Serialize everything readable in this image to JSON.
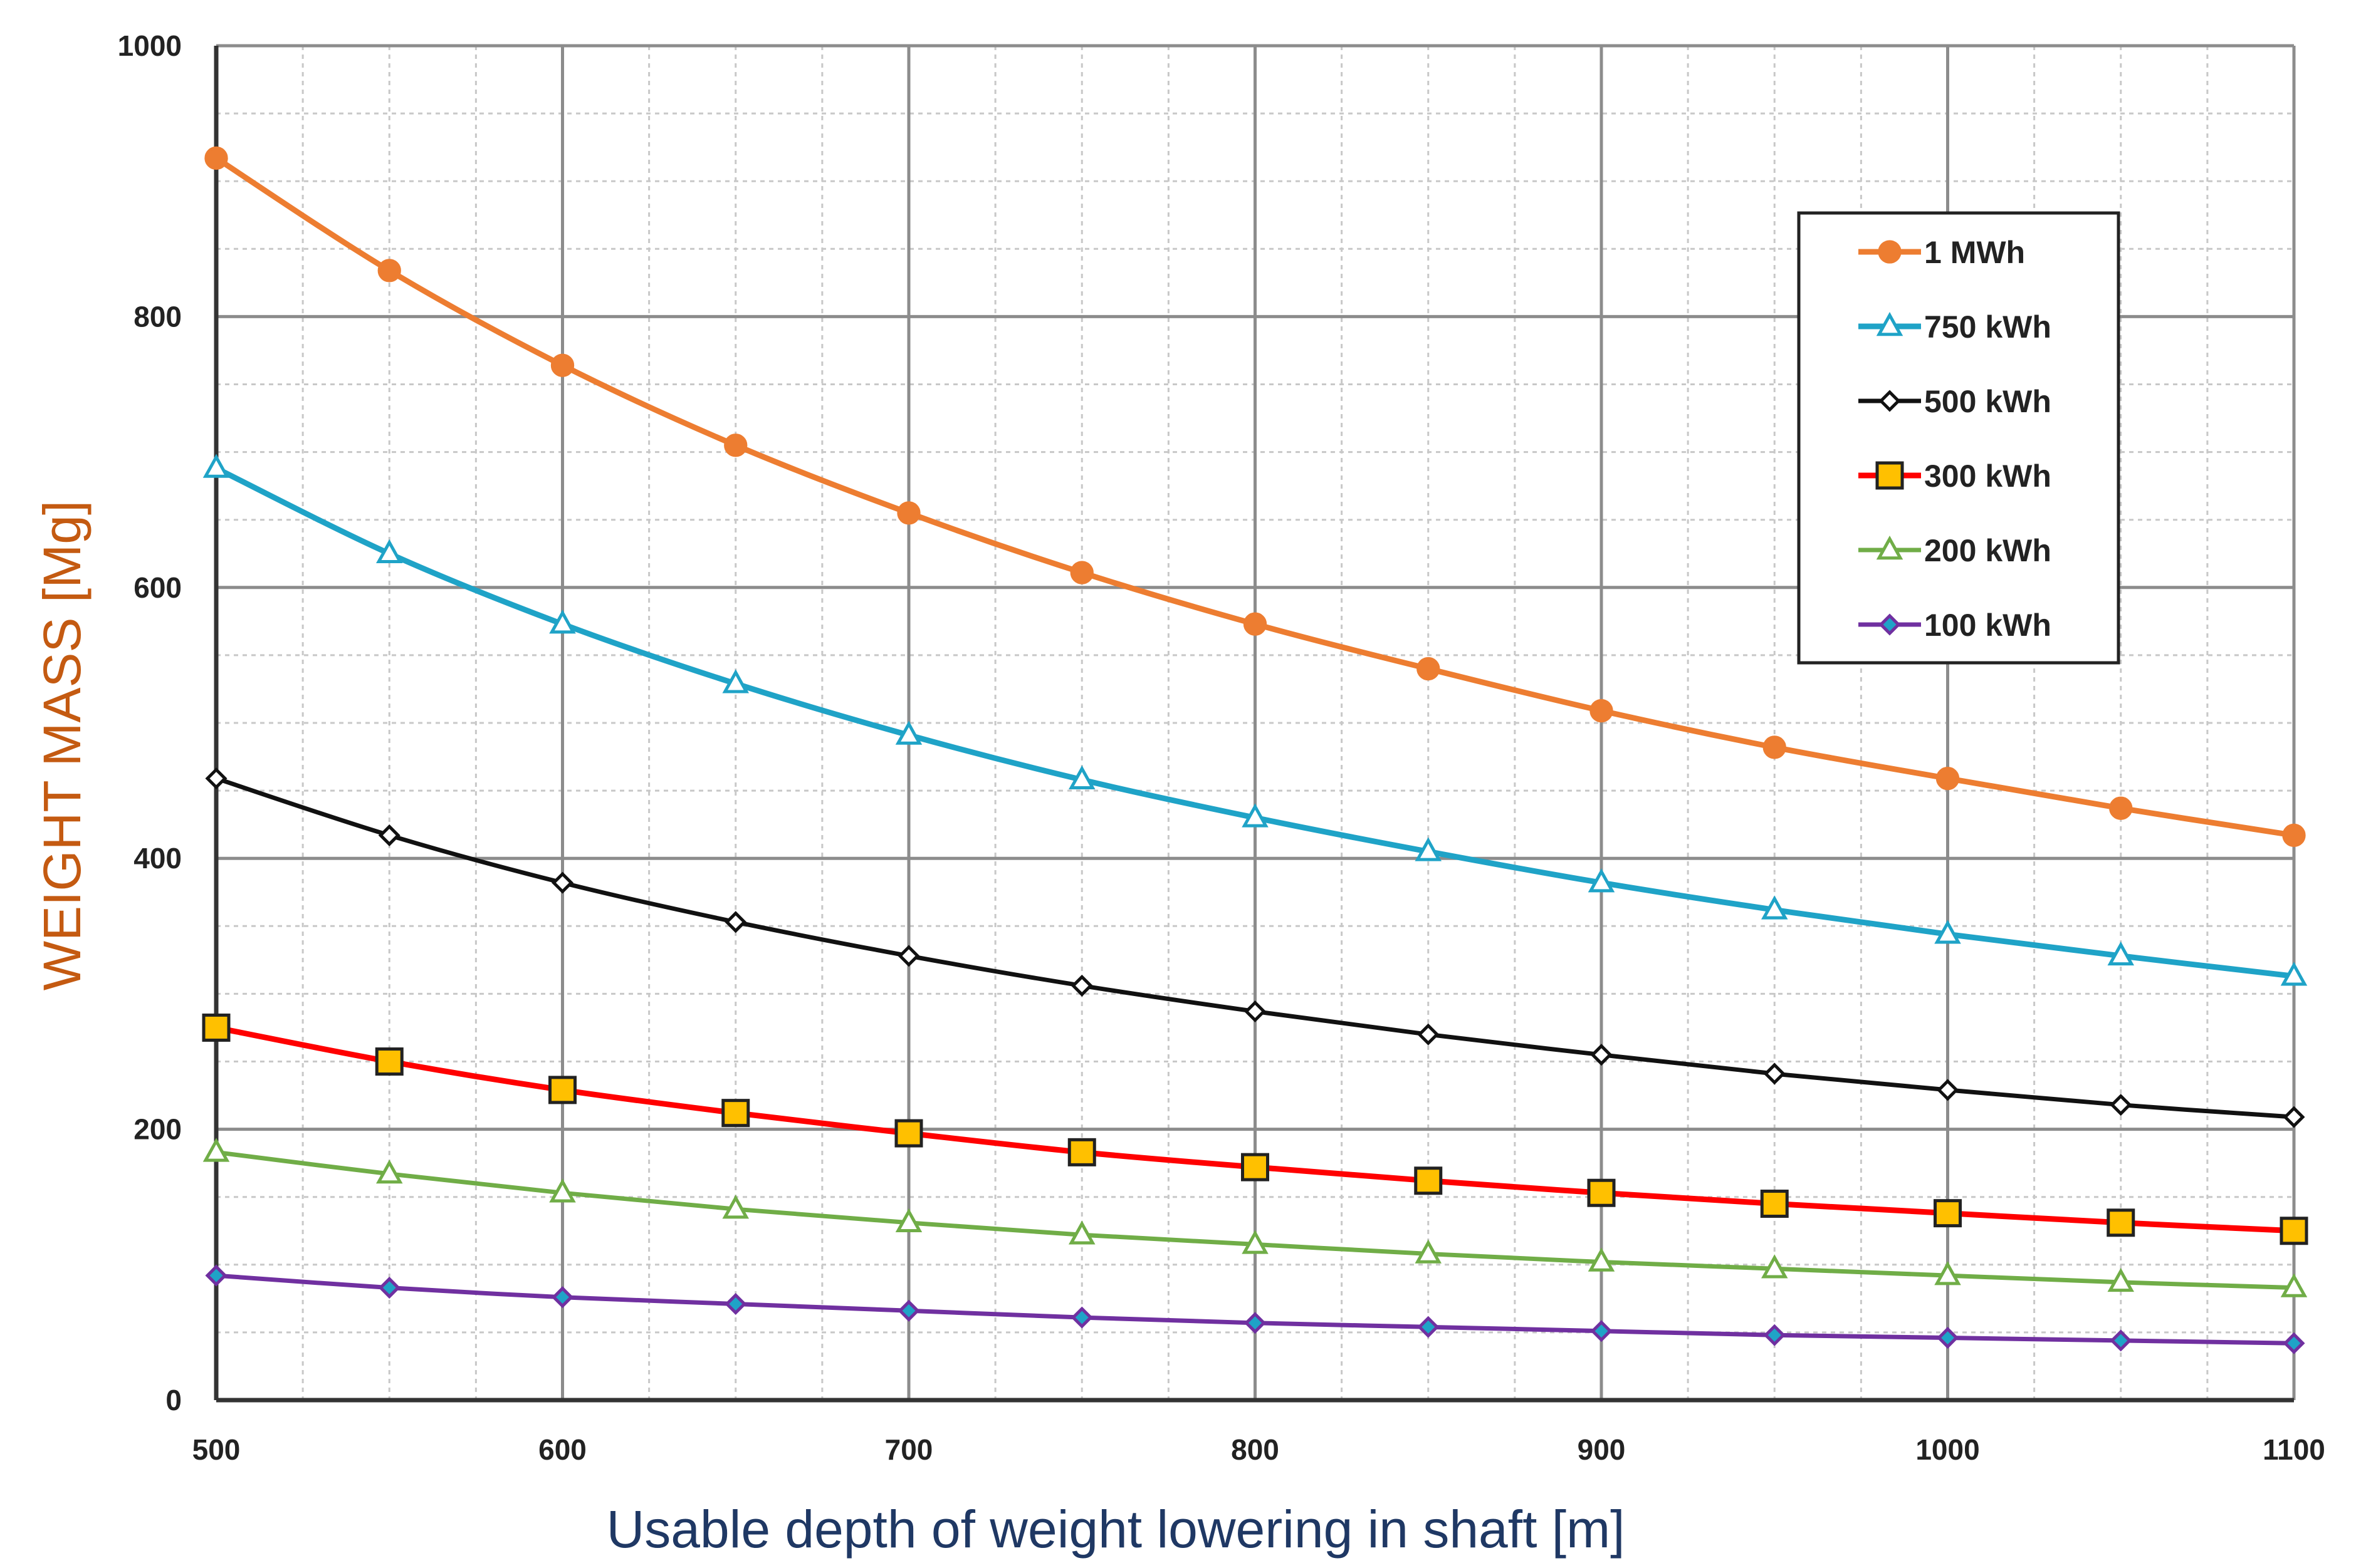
{
  "chart_data": {
    "type": "line",
    "title": "",
    "xlabel": "Usable depth of weight lowering in shaft [m]",
    "ylabel": "WEIGHT MASS [Mg]",
    "xlim": [
      500,
      1100
    ],
    "ylim": [
      0,
      1000
    ],
    "x_ticks": [
      500,
      600,
      700,
      800,
      900,
      1000,
      1100
    ],
    "y_ticks": [
      0,
      200,
      400,
      600,
      800,
      1000
    ],
    "x_minor_step": 25,
    "y_minor_step": 50,
    "grid": true,
    "legend_position": "top-right",
    "x": [
      500,
      550,
      600,
      650,
      700,
      750,
      800,
      850,
      900,
      950,
      1000,
      1050,
      1100
    ],
    "series": [
      {
        "name": "1 MWh",
        "color": "#ED7D31",
        "marker": "circle",
        "marker_fill": "#ED7D31",
        "values": [
          917,
          834,
          764,
          705,
          655,
          611,
          573,
          540,
          509,
          482,
          459,
          437,
          417
        ]
      },
      {
        "name": "750 kWh",
        "color": "#1FA3C7",
        "marker": "triangle",
        "marker_fill": "#ffffff",
        "values": [
          688,
          625,
          573,
          529,
          491,
          458,
          430,
          405,
          382,
          362,
          344,
          328,
          313
        ]
      },
      {
        "name": "500 kWh",
        "color": "#111111",
        "marker": "diamond",
        "marker_fill": "#ffffff",
        "values": [
          459,
          417,
          382,
          353,
          328,
          306,
          287,
          270,
          255,
          241,
          229,
          218,
          209
        ]
      },
      {
        "name": "300 kWh",
        "color": "#FF0000",
        "marker": "square",
        "marker_fill": "#FFC000",
        "values": [
          275,
          250,
          229,
          212,
          197,
          183,
          172,
          162,
          153,
          145,
          138,
          131,
          125
        ]
      },
      {
        "name": "200 kWh",
        "color": "#70AD47",
        "marker": "triangle",
        "marker_fill": "#ffffff",
        "values": [
          183,
          167,
          153,
          141,
          131,
          122,
          115,
          108,
          102,
          97,
          92,
          87,
          83
        ]
      },
      {
        "name": "100 kWh",
        "color": "#7030A0",
        "marker": "diamond",
        "marker_fill": "#1FA3C7",
        "values": [
          92,
          83,
          76,
          71,
          66,
          61,
          57,
          54,
          51,
          48,
          46,
          44,
          42
        ]
      }
    ]
  }
}
